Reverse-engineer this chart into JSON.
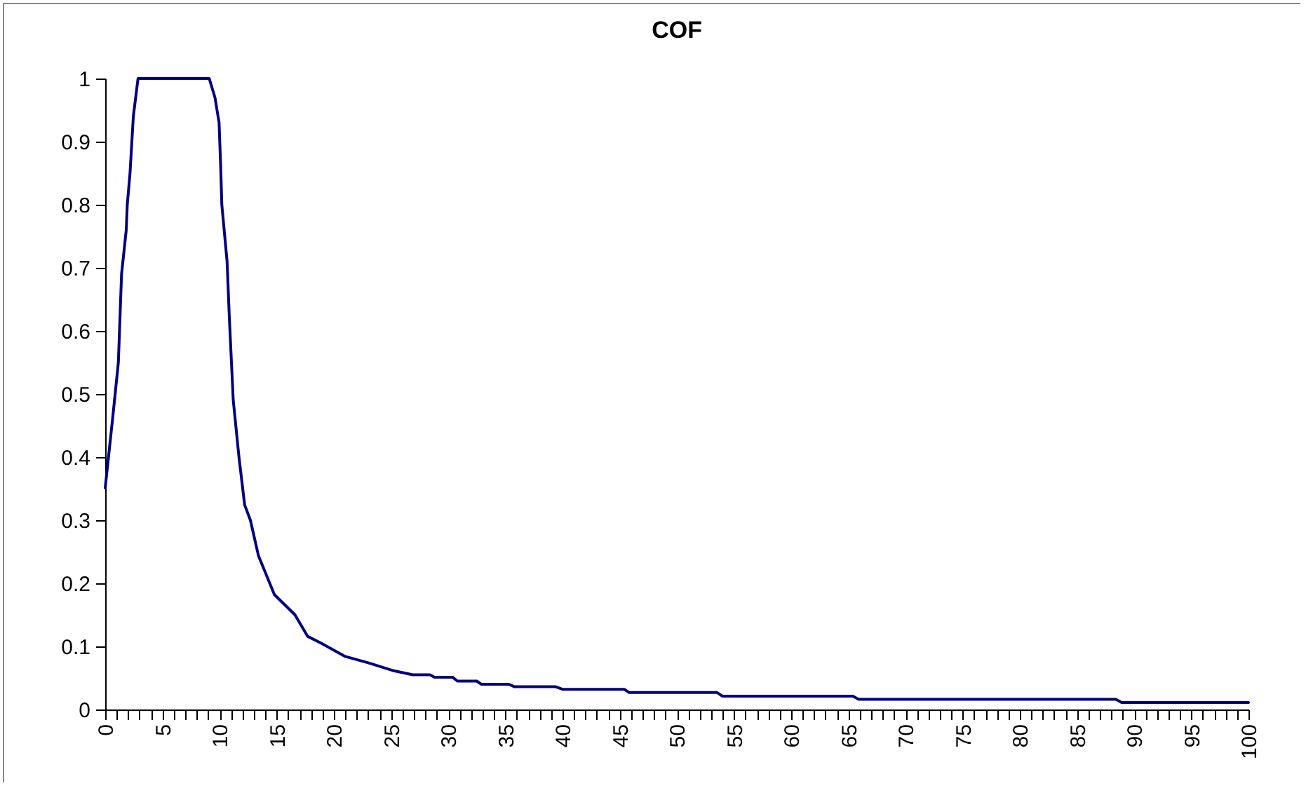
{
  "chart_data": {
    "type": "line",
    "title": "COF",
    "x": [
      0,
      0.7,
      1.15,
      1.43,
      1.84,
      1.93,
      2.17,
      2.46,
      2.87,
      3.28,
      3.7,
      8.0,
      8.6,
      9.1,
      9.6,
      9.96,
      10.1,
      10.2,
      10.66,
      10.86,
      11.2,
      11.7,
      12.2,
      12.7,
      13.4,
      14.8,
      16.6,
      17.7,
      18.9,
      21.0,
      23.0,
      25.1,
      26.9,
      28.4,
      28.8,
      30.4,
      30.8,
      32.5,
      32.9,
      35.3,
      35.8,
      39.4,
      40.0,
      45.4,
      45.8,
      53.5,
      54.0,
      65.4,
      65.9,
      88.4,
      88.9,
      100
    ],
    "series": [
      {
        "color": "#000080",
        "values": [
          0.351,
          0.47,
          0.55,
          0.69,
          0.76,
          0.8,
          0.85,
          0.94,
          1.0,
          1.0,
          1.0,
          1.0,
          1.0,
          1.0,
          0.97,
          0.93,
          0.86,
          0.8,
          0.71,
          0.62,
          0.49,
          0.4,
          0.324,
          0.3,
          0.244,
          0.182,
          0.15,
          0.116,
          0.105,
          0.084,
          0.074,
          0.062,
          0.055,
          0.055,
          0.051,
          0.051,
          0.045,
          0.045,
          0.04,
          0.04,
          0.036,
          0.036,
          0.032,
          0.032,
          0.027,
          0.027,
          0.021,
          0.021,
          0.016,
          0.016,
          0.011,
          0.011
        ]
      }
    ],
    "xlim": [
      0,
      100
    ],
    "ylim": [
      0,
      1
    ],
    "yticks": [
      0,
      0.1,
      0.2,
      0.3,
      0.4,
      0.5,
      0.6,
      0.7,
      0.8,
      0.9,
      1
    ],
    "xticks": [
      0,
      {
        "value": 1,
        "label": null
      },
      {
        "value": 2,
        "label": null
      },
      {
        "value": 3,
        "label": null
      },
      {
        "value": 4,
        "label": null
      },
      5,
      {
        "value": 6,
        "label": null
      },
      {
        "value": 7,
        "label": null
      },
      {
        "value": 8,
        "label": null
      },
      {
        "value": 9,
        "label": null
      },
      10,
      {
        "value": 11,
        "label": null
      },
      {
        "value": 12,
        "label": null
      },
      {
        "value": 13,
        "label": null
      },
      {
        "value": 14,
        "label": null
      },
      15,
      {
        "value": 16,
        "label": null
      },
      {
        "value": 17,
        "label": null
      },
      {
        "value": 18,
        "label": null
      },
      {
        "value": 19,
        "label": null
      },
      20,
      {
        "value": 21,
        "label": null
      },
      {
        "value": 22,
        "label": null
      },
      {
        "value": 23,
        "label": null
      },
      {
        "value": 24,
        "label": null
      },
      25,
      {
        "value": 26,
        "label": null
      },
      {
        "value": 27,
        "label": null
      },
      {
        "value": 28,
        "label": null
      },
      {
        "value": 29,
        "label": null
      },
      30,
      {
        "value": 31,
        "label": null
      },
      {
        "value": 32,
        "label": null
      },
      {
        "value": 33,
        "label": null
      },
      {
        "value": 34,
        "label": null
      },
      35,
      {
        "value": 36,
        "label": null
      },
      {
        "value": 37,
        "label": null
      },
      {
        "value": 38,
        "label": null
      },
      {
        "value": 39,
        "label": null
      },
      40,
      {
        "value": 41,
        "label": null
      },
      {
        "value": 42,
        "label": null
      },
      {
        "value": 43,
        "label": null
      },
      {
        "value": 44,
        "label": null
      },
      45,
      {
        "value": 46,
        "label": null
      },
      {
        "value": 47,
        "label": null
      },
      {
        "value": 48,
        "label": null
      },
      {
        "value": 49,
        "label": null
      },
      50,
      {
        "value": 51,
        "label": null
      },
      {
        "value": 52,
        "label": null
      },
      {
        "value": 53,
        "label": null
      },
      {
        "value": 54,
        "label": null
      },
      55,
      {
        "value": 56,
        "label": null
      },
      {
        "value": 57,
        "label": null
      },
      {
        "value": 58,
        "label": null
      },
      {
        "value": 59,
        "label": null
      },
      60,
      {
        "value": 61,
        "label": null
      },
      {
        "value": 62,
        "label": null
      },
      {
        "value": 63,
        "label": null
      },
      {
        "value": 64,
        "label": null
      },
      65,
      {
        "value": 66,
        "label": null
      },
      {
        "value": 67,
        "label": null
      },
      {
        "value": 68,
        "label": null
      },
      {
        "value": 69,
        "label": null
      },
      70,
      {
        "value": 71,
        "label": null
      },
      {
        "value": 72,
        "label": null
      },
      {
        "value": 73,
        "label": null
      },
      {
        "value": 74,
        "label": null
      },
      75,
      {
        "value": 76,
        "label": null
      },
      {
        "value": 77,
        "label": null
      },
      {
        "value": 78,
        "label": null
      },
      {
        "value": 79,
        "label": null
      },
      80,
      {
        "value": 81,
        "label": null
      },
      {
        "value": 82,
        "label": null
      },
      {
        "value": 83,
        "label": null
      },
      {
        "value": 84,
        "label": null
      },
      85,
      {
        "value": 86,
        "label": null
      },
      {
        "value": 87,
        "label": null
      },
      {
        "value": 88,
        "label": null
      },
      {
        "value": 89,
        "label": null
      },
      90,
      {
        "value": 91,
        "label": null
      },
      {
        "value": 92,
        "label": null
      },
      {
        "value": 93,
        "label": null
      },
      {
        "value": 94,
        "label": null
      },
      95,
      {
        "value": 96,
        "label": null
      },
      {
        "value": 97,
        "label": null
      },
      {
        "value": 98,
        "label": null
      },
      {
        "value": 99,
        "label": null
      },
      100
    ],
    "marker": "none",
    "line_style": "solid",
    "grid": false
  }
}
